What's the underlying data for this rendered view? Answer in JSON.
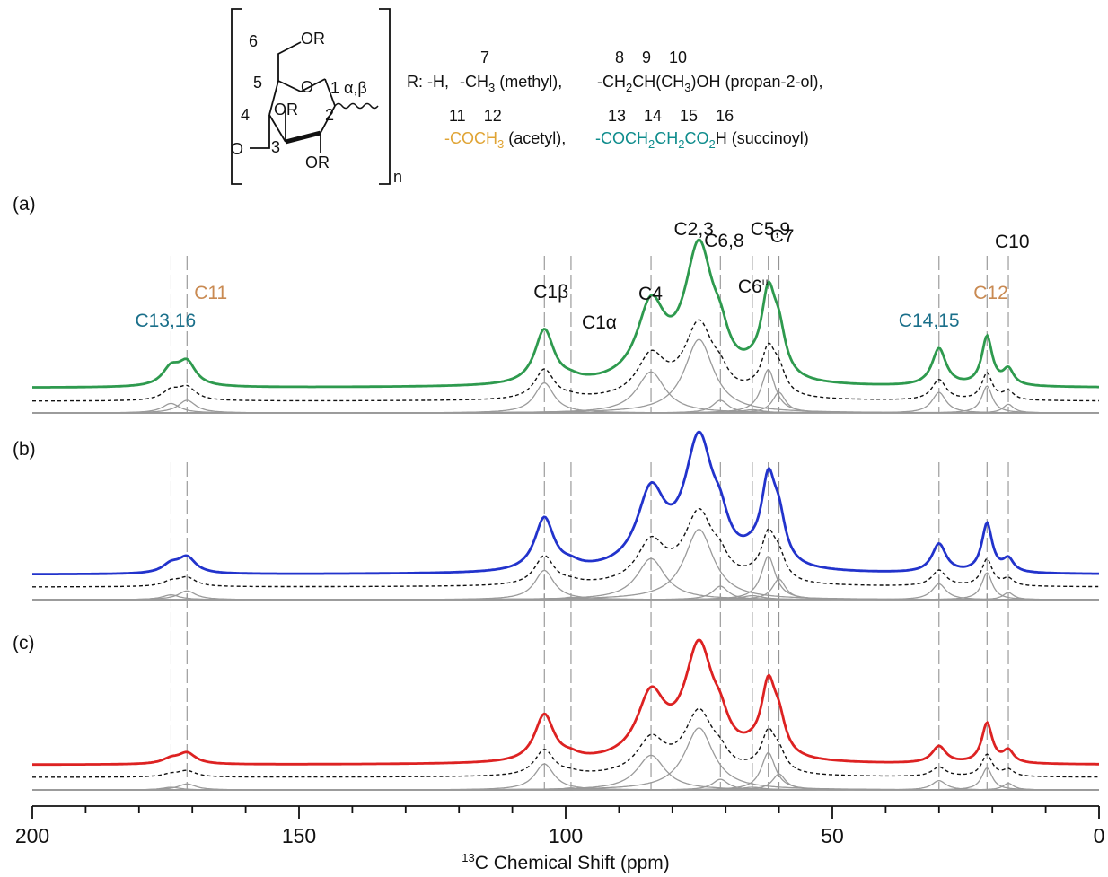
{
  "structure": {
    "ring_numbers": [
      "6",
      "5",
      "4",
      "3",
      "2",
      "1 α,β"
    ],
    "ring_substituents": [
      "OR",
      "OR",
      "OR"
    ],
    "repeat_index": "n",
    "r_prefix": "R: -H,",
    "groups": [
      {
        "numbers": "7",
        "formula": "-CH",
        "sub": "3",
        "tail": " (methyl),",
        "color": "#111111"
      },
      {
        "numbers": "8    9    10",
        "formula": "-CH",
        "sub": "2",
        "tail": "CH(CH",
        "sub2": "3",
        "tail2": ")OH (propan-2-ol),",
        "color": "#111111"
      },
      {
        "numbers": "11    12",
        "formula": "-COCH",
        "sub": "3",
        "tail": " (acetyl),",
        "color": "#e0a434"
      },
      {
        "numbers": "13    14    15    16",
        "formula": "-COCH",
        "sub": "2",
        "tail": "CH",
        "sub2": "2",
        "tail2": "CO",
        "sub3": "2",
        "tail3": "H (succinoyl)",
        "color": "#0e8c8c"
      }
    ]
  },
  "panels": [
    "(a)",
    "(b)",
    "(c)"
  ],
  "chart_data": {
    "type": "line",
    "xlabel_pre": "13",
    "xlabel": "C Chemical Shift (ppm)",
    "xlim": [
      200,
      0
    ],
    "xticks": [
      200,
      150,
      100,
      50,
      0
    ],
    "x_reversed": true,
    "peak_labels": [
      {
        "text": "C13,16",
        "ppm": 174,
        "color": "#1a6f8a"
      },
      {
        "text": "C11",
        "ppm": 171,
        "color": "#c98a52"
      },
      {
        "text": "C1β",
        "ppm": 104,
        "color": "#111111"
      },
      {
        "text": "C1α",
        "ppm": 99,
        "color": "#111111"
      },
      {
        "text": "C4",
        "ppm": 84,
        "color": "#111111"
      },
      {
        "text": "C2,3",
        "ppm": 75,
        "color": "#111111"
      },
      {
        "text": "C6,8",
        "ppm": 71,
        "color": "#111111"
      },
      {
        "text": "C6u",
        "ppm": 65,
        "color": "#111111"
      },
      {
        "text": "C5,9",
        "ppm": 62,
        "color": "#111111"
      },
      {
        "text": "C7",
        "ppm": 60,
        "color": "#111111"
      },
      {
        "text": "C14,15",
        "ppm": 30,
        "color": "#1a6f8a"
      },
      {
        "text": "C12",
        "ppm": 21,
        "color": "#c98a52"
      },
      {
        "text": "C10",
        "ppm": 17,
        "color": "#111111"
      }
    ],
    "series": [
      {
        "name": "(a)",
        "color": "#2e9a4e",
        "peaks": [
          {
            "ppm": 174,
            "height": 0.12,
            "width": 2.0
          },
          {
            "ppm": 171,
            "height": 0.16,
            "width": 2.0
          },
          {
            "ppm": 104,
            "height": 0.38,
            "width": 2.2
          },
          {
            "ppm": 99,
            "height": 0.02,
            "width": 2.0
          },
          {
            "ppm": 84,
            "height": 0.52,
            "width": 3.2
          },
          {
            "ppm": 75,
            "height": 0.93,
            "width": 3.3
          },
          {
            "ppm": 71,
            "height": 0.16,
            "width": 1.8
          },
          {
            "ppm": 65,
            "height": 0.04,
            "width": 2.5
          },
          {
            "ppm": 62,
            "height": 0.55,
            "width": 1.6
          },
          {
            "ppm": 60,
            "height": 0.26,
            "width": 1.5
          },
          {
            "ppm": 30,
            "height": 0.26,
            "width": 1.6
          },
          {
            "ppm": 21,
            "height": 0.34,
            "width": 1.2
          },
          {
            "ppm": 17,
            "height": 0.11,
            "width": 1.2
          }
        ]
      },
      {
        "name": "(b)",
        "color": "#2233cc",
        "peaks": [
          {
            "ppm": 174,
            "height": 0.06,
            "width": 2.0
          },
          {
            "ppm": 171,
            "height": 0.11,
            "width": 2.0
          },
          {
            "ppm": 104,
            "height": 0.37,
            "width": 2.2
          },
          {
            "ppm": 99,
            "height": 0.03,
            "width": 2.0
          },
          {
            "ppm": 84,
            "height": 0.52,
            "width": 3.2
          },
          {
            "ppm": 75,
            "height": 0.89,
            "width": 3.3
          },
          {
            "ppm": 71,
            "height": 0.17,
            "width": 1.8
          },
          {
            "ppm": 65,
            "height": 0.05,
            "width": 2.5
          },
          {
            "ppm": 62,
            "height": 0.55,
            "width": 1.6
          },
          {
            "ppm": 60,
            "height": 0.26,
            "width": 1.5
          },
          {
            "ppm": 30,
            "height": 0.2,
            "width": 1.6
          },
          {
            "ppm": 21,
            "height": 0.34,
            "width": 1.2
          },
          {
            "ppm": 17,
            "height": 0.09,
            "width": 1.2
          }
        ]
      },
      {
        "name": "(c)",
        "color": "#dd2222",
        "peaks": [
          {
            "ppm": 174,
            "height": 0.04,
            "width": 2.0
          },
          {
            "ppm": 171,
            "height": 0.09,
            "width": 2.0
          },
          {
            "ppm": 104,
            "height": 0.39,
            "width": 2.2
          },
          {
            "ppm": 99,
            "height": 0.03,
            "width": 2.0
          },
          {
            "ppm": 84,
            "height": 0.52,
            "width": 3.2
          },
          {
            "ppm": 75,
            "height": 0.93,
            "width": 3.3
          },
          {
            "ppm": 71,
            "height": 0.16,
            "width": 1.8
          },
          {
            "ppm": 65,
            "height": 0.04,
            "width": 2.5
          },
          {
            "ppm": 62,
            "height": 0.56,
            "width": 1.6
          },
          {
            "ppm": 60,
            "height": 0.24,
            "width": 1.5
          },
          {
            "ppm": 30,
            "height": 0.14,
            "width": 1.6
          },
          {
            "ppm": 21,
            "height": 0.33,
            "width": 1.2
          },
          {
            "ppm": 17,
            "height": 0.1,
            "width": 1.2
          }
        ]
      }
    ]
  }
}
